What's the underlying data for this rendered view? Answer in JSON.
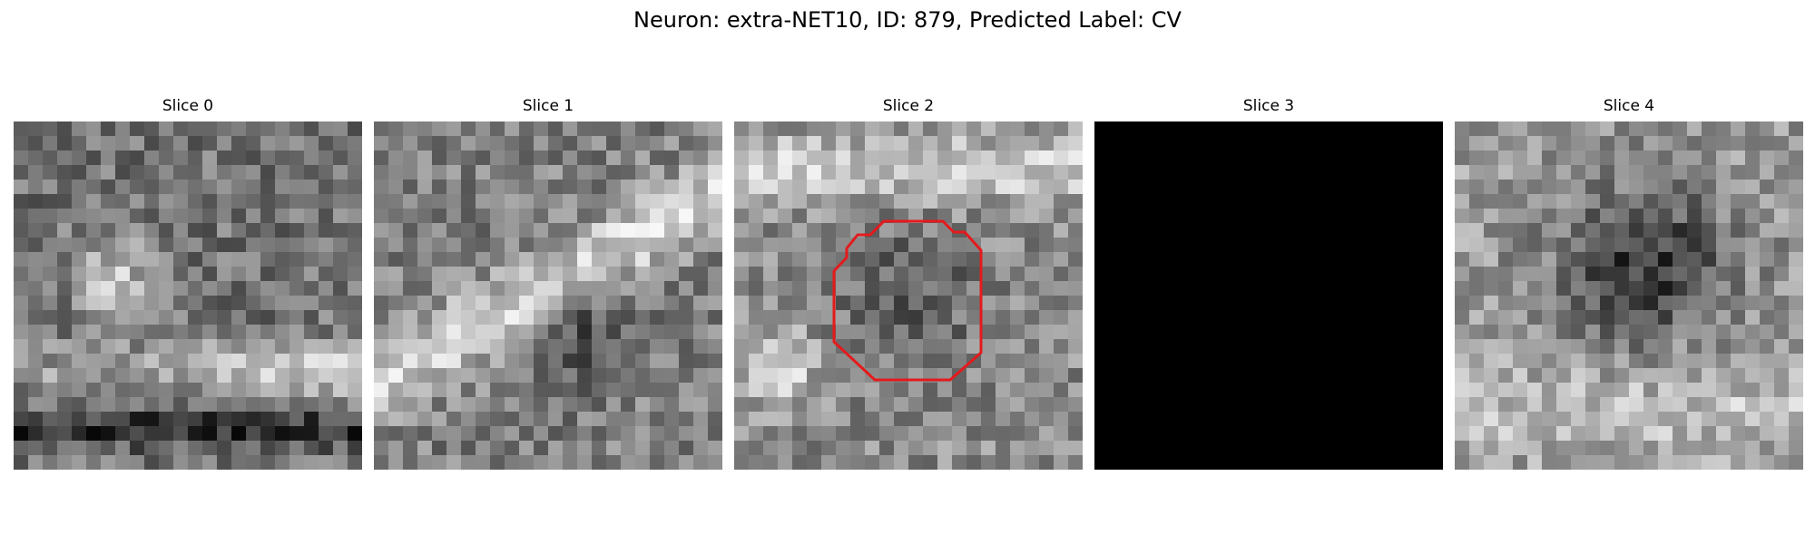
{
  "figure": {
    "title": "Neuron: extra-NET10, ID: 879, Predicted Label: CV"
  },
  "slices": [
    {
      "title": "Slice 0",
      "appearance": "grayscale-texture",
      "seed": 11
    },
    {
      "title": "Slice 1",
      "appearance": "grayscale-texture",
      "seed": 23
    },
    {
      "title": "Slice 2",
      "appearance": "grayscale-texture",
      "seed": 37,
      "contour": true
    },
    {
      "title": "Slice 3",
      "appearance": "black"
    },
    {
      "title": "Slice 4",
      "appearance": "grayscale-texture",
      "seed": 53
    }
  ],
  "colors": {
    "contour": "#e41a1c",
    "black_slice": "#000000"
  }
}
